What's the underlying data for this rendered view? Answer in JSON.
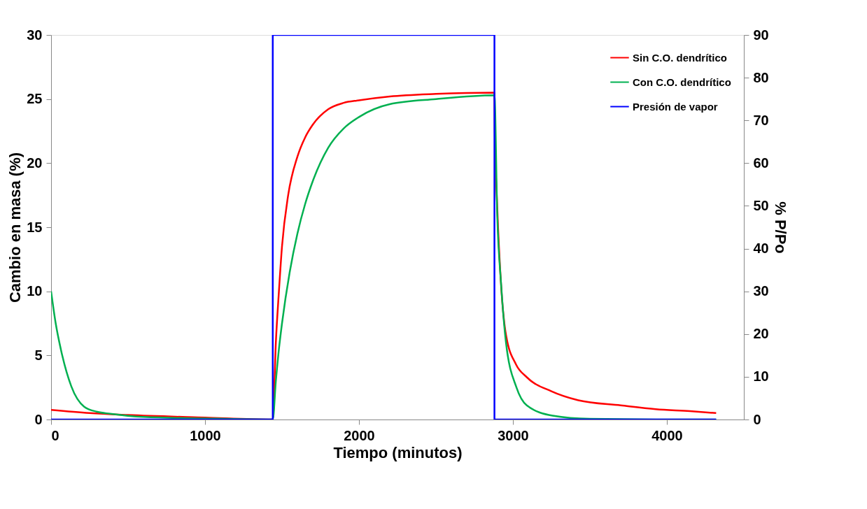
{
  "chart_data": {
    "type": "line",
    "xlabel": "Tiempo (minutos)",
    "ylabel": "Cambio en masa (%)",
    "y2label": "% P/Po",
    "xlim": [
      0,
      4500
    ],
    "xticks": [
      0,
      1000,
      2000,
      3000,
      4000
    ],
    "ylim": [
      0,
      30
    ],
    "yticks": [
      0,
      5,
      10,
      15,
      20,
      25,
      30
    ],
    "y2lim": [
      0,
      90
    ],
    "y2ticks": [
      0,
      10,
      20,
      30,
      40,
      50,
      60,
      70,
      80,
      90
    ],
    "grid": false,
    "legend": "top right",
    "line_style": "solid",
    "marker": "none",
    "series": [
      {
        "name": "Sin C.O. dendrítico",
        "color": "#ff0000",
        "x": [
          0,
          250,
          500,
          1000,
          1440,
          1460,
          1480,
          1500,
          1540,
          1600,
          1650,
          1700,
          1800,
          1900,
          2000,
          2200,
          2500,
          2880,
          2882,
          2898,
          2923,
          2955,
          3020,
          3090,
          3250,
          3425,
          3700,
          3928,
          4150,
          4320
        ],
        "values": [
          0.75,
          0.5,
          0.35,
          0.15,
          0,
          6,
          10,
          13.5,
          17.5,
          20.5,
          22,
          23,
          24.2,
          24.7,
          24.9,
          25.2,
          25.4,
          25.5,
          22.6,
          16.6,
          10.5,
          6.6,
          4.3,
          3.3,
          2.2,
          1.5,
          1.1,
          0.8,
          0.65,
          0.5
        ]
      },
      {
        "name": "Con C.O. dendrítico",
        "color": "#00b050",
        "x": [
          0,
          30,
          63,
          131,
          215,
          300,
          384,
          600,
          1000,
          1440,
          1460,
          1480,
          1500,
          1550,
          1600,
          1650,
          1700,
          1800,
          1900,
          2000,
          2200,
          2500,
          2880,
          2898,
          2923,
          2955,
          3023,
          3090,
          3258,
          3500,
          4000,
          4320
        ],
        "values": [
          10,
          7.5,
          5.5,
          2.6,
          1,
          0.6,
          0.45,
          0.2,
          0.08,
          0,
          3,
          5.5,
          7.5,
          11.5,
          14.5,
          16.8,
          18.6,
          21.2,
          22.7,
          23.6,
          24.6,
          25,
          25.3,
          16,
          10.6,
          6,
          2.5,
          1.1,
          0.3,
          0.05,
          0,
          0
        ]
      },
      {
        "name": "Presión de vapor",
        "color": "#0000ff",
        "axis": "y2",
        "x": [
          0,
          1440,
          1440,
          2880,
          2880,
          4320
        ],
        "values": [
          0,
          0,
          90,
          90,
          0,
          0
        ]
      }
    ]
  }
}
